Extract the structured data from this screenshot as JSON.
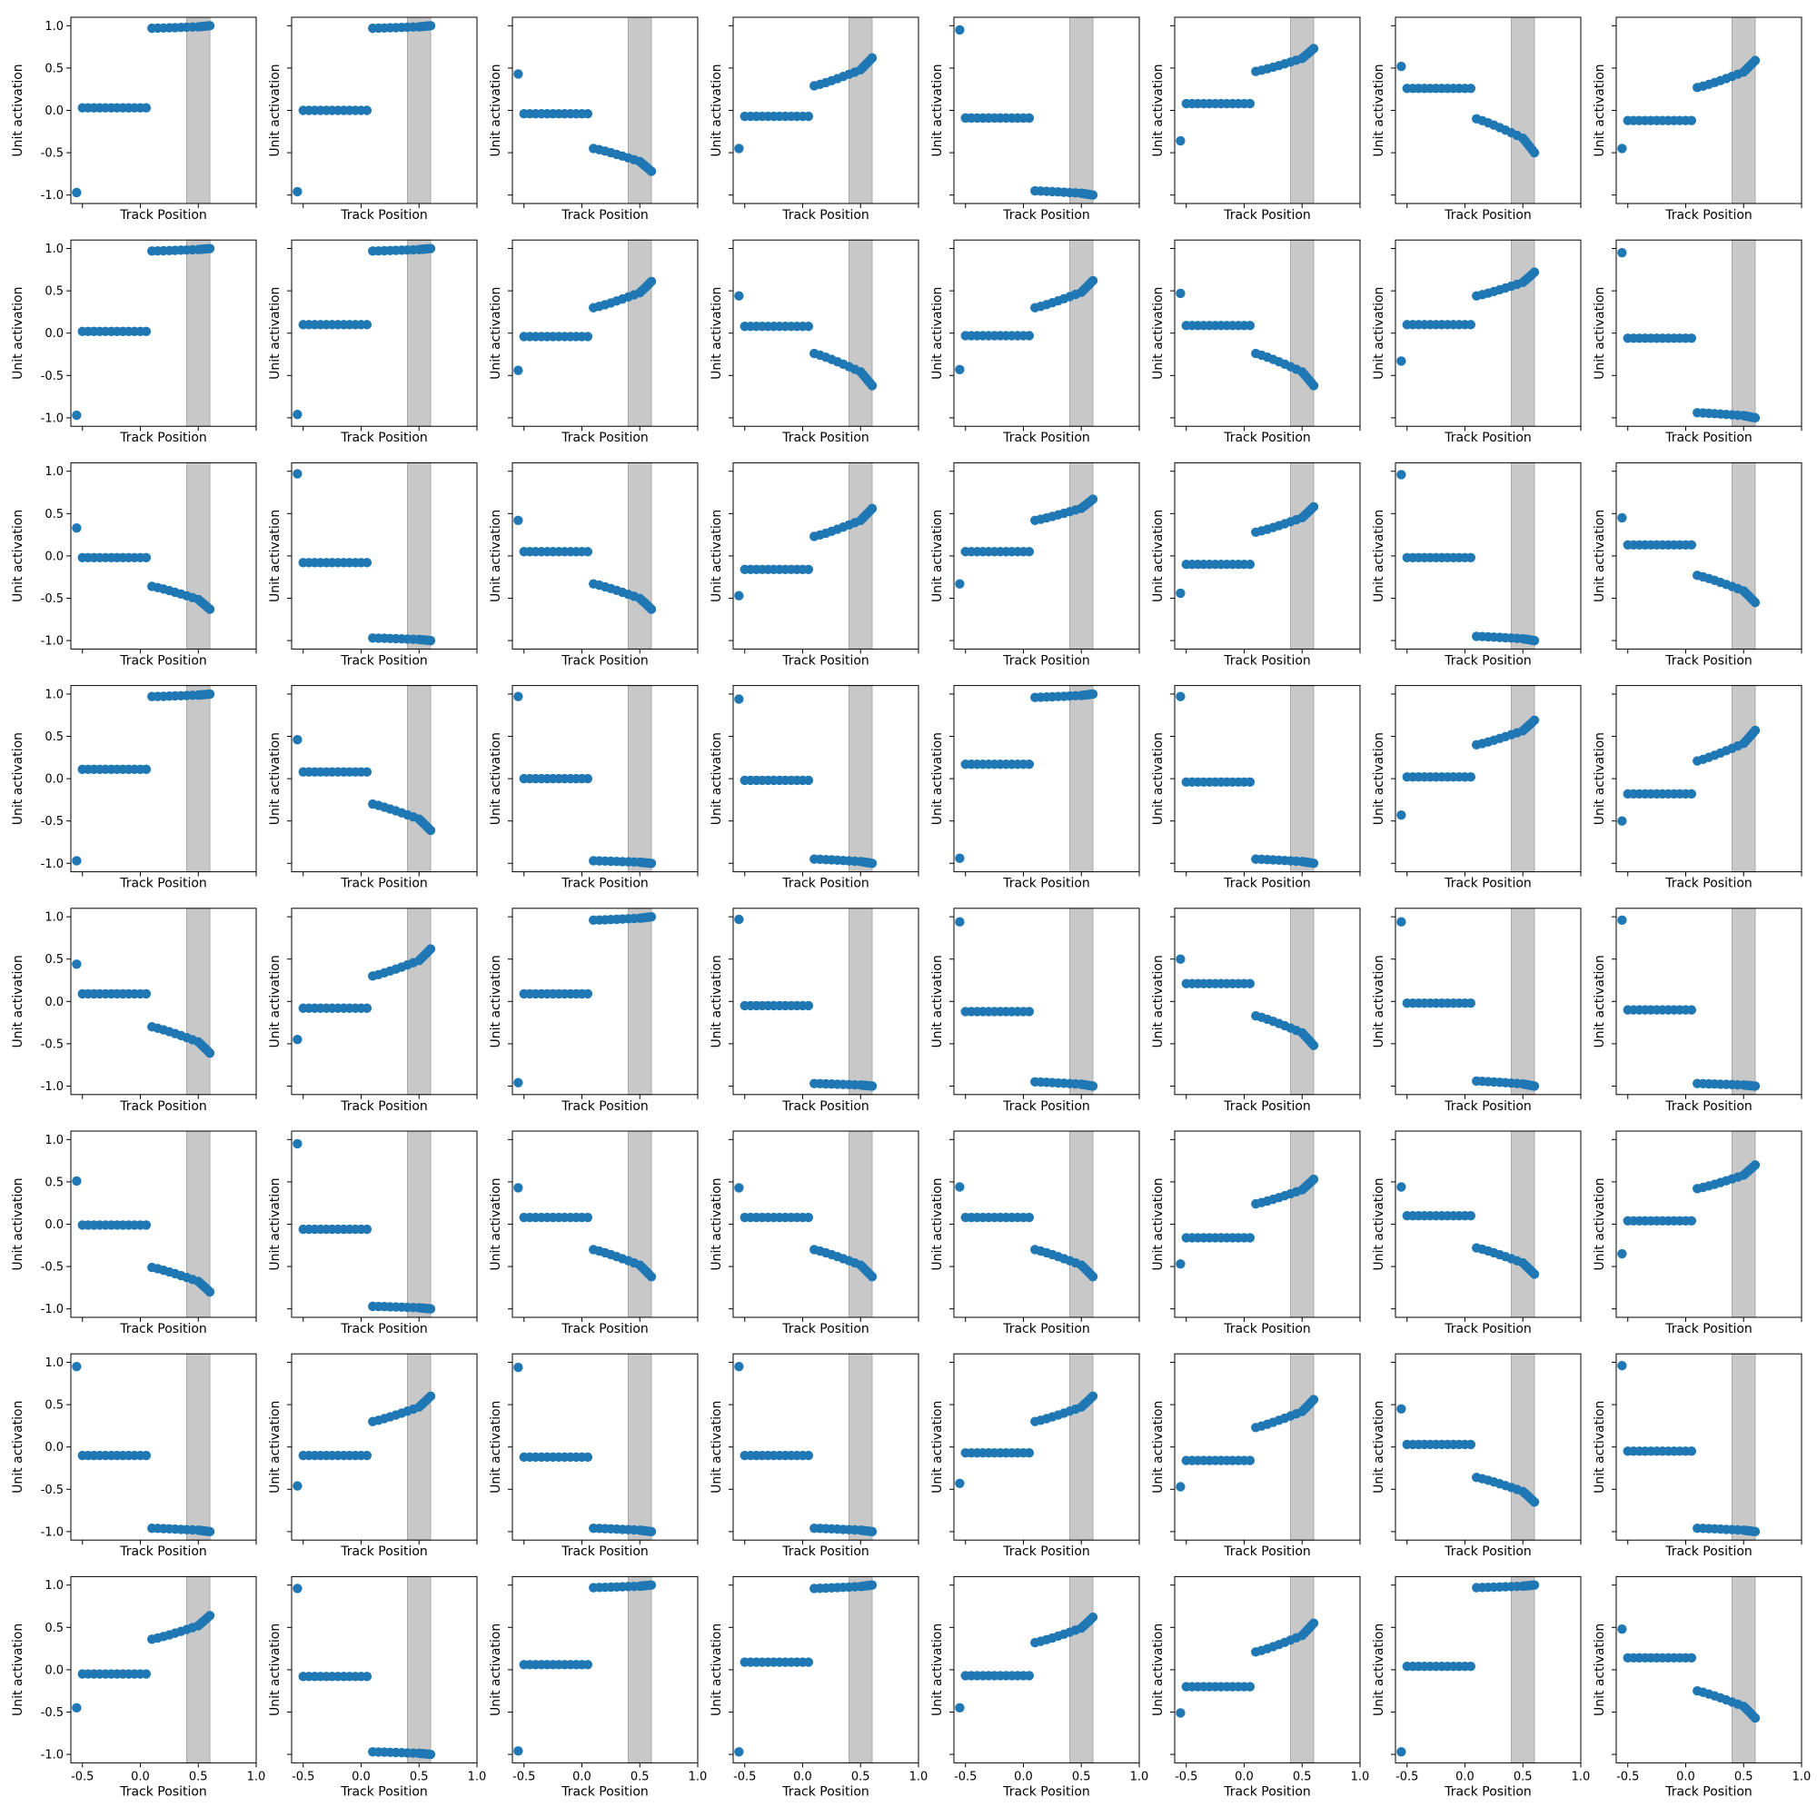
{
  "chart_data": {
    "type": "scatter",
    "layout": "8x8 grid of small multiples, shared x-axis per column, shared y-axis per row",
    "xlabel": "Track Position",
    "ylabel": "Unit activation",
    "xlim": [
      -0.6,
      1.0
    ],
    "ylim": [
      -1.1,
      1.1
    ],
    "xticks": [
      -0.5,
      0.0,
      0.5,
      1.0
    ],
    "xtick_labels": [
      "-0.5",
      "0.0",
      "0.5",
      "1.0"
    ],
    "yticks": [
      -1.0,
      -0.5,
      0.0,
      0.5,
      1.0
    ],
    "ytick_labels": [
      "-1.0",
      "-0.5",
      "0.0",
      "0.5",
      "1.0"
    ],
    "shaded_region_x": [
      0.4,
      0.6
    ],
    "shaded_color": "#c8c8c8",
    "marker_color": "#1f77b4",
    "grid": false,
    "x_points": {
      "first": -0.55,
      "left_group": [
        -0.5,
        -0.45,
        -0.4,
        -0.35,
        -0.3,
        -0.25,
        -0.2,
        -0.15,
        -0.1,
        -0.05,
        0.0,
        0.05
      ],
      "right_group": [
        0.1,
        0.15,
        0.2,
        0.25,
        0.3,
        0.35,
        0.4,
        0.45,
        0.5,
        0.52,
        0.54,
        0.56,
        0.58,
        0.6
      ]
    },
    "panels": [
      {
        "first": -0.97,
        "left": 0.03,
        "right": [
          0.97,
          1.0
        ]
      },
      {
        "first": -0.96,
        "left": 0.0,
        "right": [
          0.97,
          1.0
        ]
      },
      {
        "first": 0.43,
        "left": -0.04,
        "right": [
          -0.45,
          -0.72
        ]
      },
      {
        "first": -0.45,
        "left": -0.07,
        "right": [
          0.29,
          0.62
        ]
      },
      {
        "first": 0.95,
        "left": -0.09,
        "right": [
          -0.95,
          -1.0
        ]
      },
      {
        "first": -0.36,
        "left": 0.08,
        "right": [
          0.46,
          0.73
        ]
      },
      {
        "first": 0.52,
        "left": 0.26,
        "right": [
          -0.1,
          -0.5
        ]
      },
      {
        "first": -0.45,
        "left": -0.12,
        "right": [
          0.27,
          0.59
        ]
      },
      {
        "first": -0.97,
        "left": 0.02,
        "right": [
          0.97,
          1.0
        ]
      },
      {
        "first": -0.96,
        "left": 0.1,
        "right": [
          0.97,
          1.0
        ]
      },
      {
        "first": -0.44,
        "left": -0.04,
        "right": [
          0.3,
          0.61
        ]
      },
      {
        "first": 0.44,
        "left": 0.08,
        "right": [
          -0.24,
          -0.62
        ]
      },
      {
        "first": -0.43,
        "left": -0.03,
        "right": [
          0.3,
          0.62
        ]
      },
      {
        "first": 0.47,
        "left": 0.09,
        "right": [
          -0.24,
          -0.62
        ]
      },
      {
        "first": -0.33,
        "left": 0.1,
        "right": [
          0.44,
          0.72
        ]
      },
      {
        "first": 0.95,
        "left": -0.06,
        "right": [
          -0.94,
          -1.0
        ]
      },
      {
        "first": 0.33,
        "left": -0.02,
        "right": [
          -0.36,
          -0.63
        ]
      },
      {
        "first": 0.97,
        "left": -0.08,
        "right": [
          -0.97,
          -1.0
        ]
      },
      {
        "first": 0.42,
        "left": 0.05,
        "right": [
          -0.33,
          -0.63
        ]
      },
      {
        "first": -0.47,
        "left": -0.16,
        "right": [
          0.23,
          0.56
        ]
      },
      {
        "first": -0.33,
        "left": 0.05,
        "right": [
          0.42,
          0.67
        ]
      },
      {
        "first": -0.44,
        "left": -0.1,
        "right": [
          0.28,
          0.58
        ]
      },
      {
        "first": 0.96,
        "left": -0.02,
        "right": [
          -0.95,
          -1.0
        ]
      },
      {
        "first": 0.45,
        "left": 0.13,
        "right": [
          -0.23,
          -0.55
        ]
      },
      {
        "first": -0.97,
        "left": 0.11,
        "right": [
          0.97,
          1.0
        ]
      },
      {
        "first": 0.46,
        "left": 0.08,
        "right": [
          -0.3,
          -0.61
        ]
      },
      {
        "first": 0.97,
        "left": 0.0,
        "right": [
          -0.97,
          -1.0
        ]
      },
      {
        "first": 0.94,
        "left": -0.02,
        "right": [
          -0.95,
          -1.0
        ]
      },
      {
        "first": -0.94,
        "left": 0.17,
        "right": [
          0.96,
          1.0
        ]
      },
      {
        "first": 0.97,
        "left": -0.04,
        "right": [
          -0.95,
          -1.0
        ]
      },
      {
        "first": -0.43,
        "left": 0.02,
        "right": [
          0.4,
          0.69
        ]
      },
      {
        "first": -0.5,
        "left": -0.18,
        "right": [
          0.21,
          0.57
        ]
      },
      {
        "first": 0.44,
        "left": 0.09,
        "right": [
          -0.3,
          -0.61
        ]
      },
      {
        "first": -0.45,
        "left": -0.08,
        "right": [
          0.3,
          0.62
        ]
      },
      {
        "first": -0.96,
        "left": 0.09,
        "right": [
          0.96,
          1.0
        ]
      },
      {
        "first": 0.97,
        "left": -0.05,
        "right": [
          -0.97,
          -1.0
        ]
      },
      {
        "first": 0.94,
        "left": -0.12,
        "right": [
          -0.95,
          -1.0
        ]
      },
      {
        "first": 0.5,
        "left": 0.21,
        "right": [
          -0.17,
          -0.52
        ]
      },
      {
        "first": 0.94,
        "left": -0.02,
        "right": [
          -0.94,
          -1.0
        ]
      },
      {
        "first": 0.96,
        "left": -0.1,
        "right": [
          -0.97,
          -1.0
        ]
      },
      {
        "first": 0.51,
        "left": -0.01,
        "right": [
          -0.51,
          -0.8
        ]
      },
      {
        "first": 0.95,
        "left": -0.06,
        "right": [
          -0.97,
          -1.0
        ]
      },
      {
        "first": 0.43,
        "left": 0.08,
        "right": [
          -0.3,
          -0.62
        ]
      },
      {
        "first": 0.43,
        "left": 0.08,
        "right": [
          -0.3,
          -0.62
        ]
      },
      {
        "first": 0.44,
        "left": 0.08,
        "right": [
          -0.3,
          -0.62
        ]
      },
      {
        "first": -0.47,
        "left": -0.16,
        "right": [
          0.24,
          0.53
        ]
      },
      {
        "first": 0.44,
        "left": 0.1,
        "right": [
          -0.28,
          -0.59
        ]
      },
      {
        "first": -0.35,
        "left": 0.04,
        "right": [
          0.42,
          0.7
        ]
      },
      {
        "first": 0.95,
        "left": -0.1,
        "right": [
          -0.96,
          -1.0
        ]
      },
      {
        "first": -0.46,
        "left": -0.1,
        "right": [
          0.3,
          0.6
        ]
      },
      {
        "first": 0.94,
        "left": -0.12,
        "right": [
          -0.96,
          -1.0
        ]
      },
      {
        "first": 0.95,
        "left": -0.1,
        "right": [
          -0.96,
          -1.0
        ]
      },
      {
        "first": -0.43,
        "left": -0.07,
        "right": [
          0.3,
          0.6
        ]
      },
      {
        "first": -0.47,
        "left": -0.16,
        "right": [
          0.23,
          0.56
        ]
      },
      {
        "first": 0.45,
        "left": 0.03,
        "right": [
          -0.36,
          -0.65
        ]
      },
      {
        "first": 0.96,
        "left": -0.05,
        "right": [
          -0.96,
          -1.0
        ]
      },
      {
        "first": -0.45,
        "left": -0.05,
        "right": [
          0.36,
          0.64
        ]
      },
      {
        "first": 0.96,
        "left": -0.08,
        "right": [
          -0.97,
          -1.0
        ]
      },
      {
        "first": -0.96,
        "left": 0.06,
        "right": [
          0.97,
          1.0
        ]
      },
      {
        "first": -0.97,
        "left": 0.09,
        "right": [
          0.96,
          1.0
        ]
      },
      {
        "first": -0.45,
        "left": -0.07,
        "right": [
          0.32,
          0.62
        ]
      },
      {
        "first": -0.51,
        "left": -0.2,
        "right": [
          0.21,
          0.55
        ]
      },
      {
        "first": -0.97,
        "left": 0.04,
        "right": [
          0.97,
          1.0
        ]
      },
      {
        "first": 0.48,
        "left": 0.14,
        "right": [
          -0.25,
          -0.57
        ]
      }
    ]
  }
}
